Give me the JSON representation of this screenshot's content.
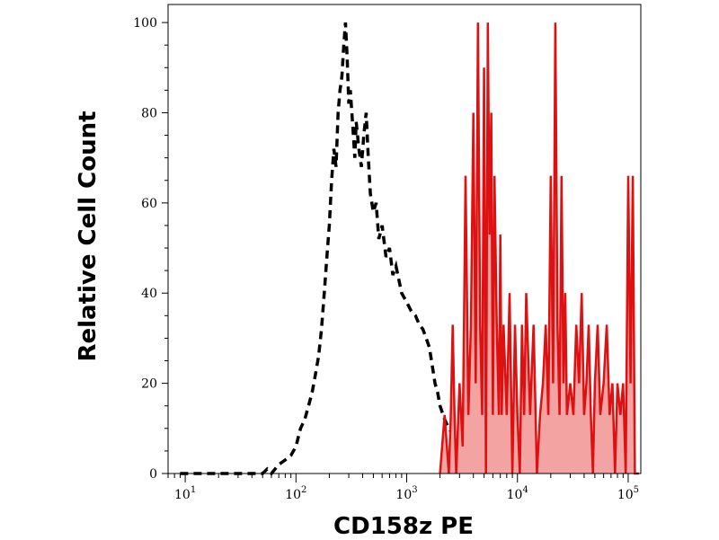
{
  "chart_data": {
    "type": "area",
    "title": "",
    "xlabel": "CD158z PE",
    "ylabel": "Relative Cell Count",
    "x_scale": "log",
    "xlim": [
      7,
      130000
    ],
    "ylim": [
      0,
      104
    ],
    "grid": false,
    "x_ticks": [
      {
        "value": 10,
        "base": "10",
        "exp": "1"
      },
      {
        "value": 100,
        "base": "10",
        "exp": "2"
      },
      {
        "value": 1000,
        "base": "10",
        "exp": "3"
      },
      {
        "value": 10000,
        "base": "10",
        "exp": "4"
      },
      {
        "value": 100000,
        "base": "10",
        "exp": "5"
      }
    ],
    "y_ticks": [
      0,
      20,
      40,
      60,
      80,
      100
    ],
    "series": [
      {
        "style": "dashed-black",
        "color": "#000000",
        "x": [
          9,
          30,
          50,
          55,
          60,
          70,
          80,
          90,
          100,
          110,
          120,
          130,
          140,
          150,
          160,
          170,
          180,
          190,
          200,
          210,
          220,
          230,
          240,
          250,
          260,
          270,
          280,
          290,
          300,
          310,
          320,
          330,
          340,
          350,
          370,
          390,
          410,
          430,
          450,
          470,
          500,
          530,
          560,
          600,
          650,
          700,
          750,
          800,
          900,
          1000,
          1100,
          1200,
          1300,
          1400,
          1500,
          1600,
          1700,
          1800,
          1900,
          2000,
          2200,
          2400,
          2700,
          3000,
          3400,
          3800,
          4200,
          4700,
          5200,
          6000,
          8000
        ],
        "y": [
          0,
          0,
          0,
          1,
          0,
          2,
          3,
          4,
          6,
          10,
          12,
          15,
          18,
          22,
          26,
          32,
          40,
          48,
          55,
          65,
          72,
          68,
          80,
          85,
          88,
          95,
          100,
          92,
          82,
          85,
          80,
          75,
          70,
          78,
          72,
          68,
          75,
          80,
          70,
          62,
          58,
          60,
          52,
          55,
          48,
          50,
          44,
          46,
          40,
          38,
          36,
          35,
          33,
          32,
          30,
          28,
          24,
          20,
          18,
          15,
          12,
          10,
          8,
          6,
          8,
          5,
          4,
          2,
          3,
          1,
          0
        ]
      },
      {
        "style": "filled-red",
        "color": "#dd1111",
        "fill": "#f4a3a3",
        "x": [
          2000,
          2200,
          2400,
          2500,
          2600,
          2700,
          2800,
          3000,
          3200,
          3400,
          3600,
          3800,
          4000,
          4200,
          4400,
          4600,
          4800,
          5000,
          5200,
          5400,
          5600,
          5800,
          6000,
          6200,
          6500,
          6800,
          7000,
          7200,
          7500,
          8000,
          8500,
          9000,
          9500,
          10000,
          10500,
          11000,
          11500,
          12000,
          13000,
          14000,
          15000,
          16000,
          17000,
          18000,
          19000,
          20000,
          21000,
          22000,
          23000,
          24000,
          25000,
          26000,
          27000,
          28000,
          30000,
          32000,
          34000,
          36000,
          38000,
          40000,
          42000,
          44000,
          46000,
          48000,
          50000,
          53000,
          56000,
          60000,
          64000,
          68000,
          72000,
          76000,
          80000,
          85000,
          90000,
          95000,
          100000,
          105000,
          110000,
          115000,
          120000,
          125000
        ],
        "y": [
          0,
          13,
          0,
          13,
          33,
          13,
          0,
          20,
          6,
          66,
          13,
          33,
          80,
          20,
          100,
          33,
          13,
          90,
          0,
          100,
          53,
          80,
          13,
          66,
          33,
          13,
          53,
          13,
          33,
          13,
          40,
          0,
          33,
          13,
          0,
          33,
          13,
          40,
          13,
          33,
          0,
          13,
          20,
          33,
          13,
          66,
          20,
          100,
          33,
          13,
          66,
          20,
          40,
          13,
          20,
          13,
          33,
          20,
          40,
          13,
          20,
          33,
          13,
          0,
          20,
          33,
          13,
          20,
          33,
          13,
          20,
          0,
          20,
          13,
          20,
          0,
          66,
          20,
          66,
          0,
          0,
          0
        ]
      }
    ]
  }
}
